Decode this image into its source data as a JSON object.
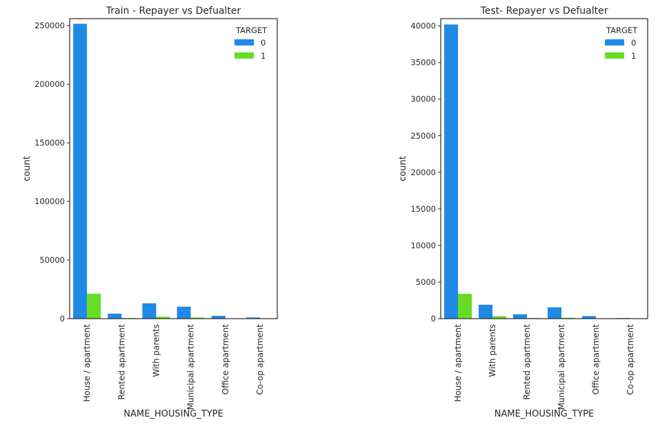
{
  "chart_data": [
    {
      "type": "bar",
      "title": "Train - Repayer vs Defualter",
      "xlabel": "NAME_HOUSING_TYPE",
      "ylabel": "count",
      "ylim": [
        0,
        256000
      ],
      "yticks": [
        0,
        50000,
        100000,
        150000,
        200000,
        250000
      ],
      "ytick_labels": [
        "0",
        "50000",
        "100000",
        "150000",
        "200000",
        "250000"
      ],
      "categories": [
        "House / apartment",
        "Rented apartment",
        "With parents",
        "Municipal apartment",
        "Office apartment",
        "Co-op apartment"
      ],
      "legend": {
        "title": "TARGET",
        "position": "top-right"
      },
      "series": [
        {
          "name": "0",
          "color": "#1e8ae6",
          "values": [
            251600,
            4300,
            13100,
            10200,
            2400,
            1000
          ]
        },
        {
          "name": "1",
          "color": "#66dd22",
          "values": [
            21300,
            600,
            1700,
            1000,
            200,
            100
          ]
        }
      ]
    },
    {
      "type": "bar",
      "title": "Test- Repayer vs Defualter",
      "xlabel": "NAME_HOUSING_TYPE",
      "ylabel": "count",
      "ylim": [
        0,
        41000
      ],
      "yticks": [
        0,
        5000,
        10000,
        15000,
        20000,
        25000,
        30000,
        35000,
        40000
      ],
      "ytick_labels": [
        "0",
        "5000",
        "10000",
        "15000",
        "20000",
        "25000",
        "30000",
        "35000",
        "40000"
      ],
      "categories": [
        "House / apartment",
        "With parents",
        "Rented apartment",
        "Municipal apartment",
        "Office apartment",
        "Co-op apartment"
      ],
      "legend": {
        "title": "TARGET",
        "position": "top-right"
      },
      "series": [
        {
          "name": "0",
          "color": "#1e8ae6",
          "values": [
            40200,
            1900,
            600,
            1550,
            350,
            80
          ]
        },
        {
          "name": "1",
          "color": "#66dd22",
          "values": [
            3400,
            350,
            80,
            120,
            40,
            10
          ]
        }
      ]
    }
  ]
}
